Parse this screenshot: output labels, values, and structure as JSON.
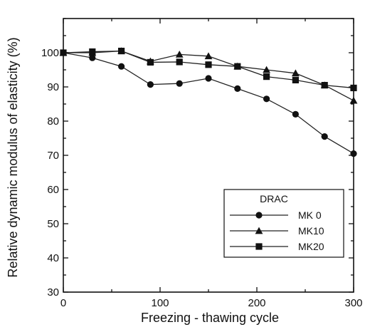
{
  "chart_data": {
    "type": "line",
    "title": "",
    "xlabel": "Freezing - thawing  cycle",
    "ylabel": "Relative  dynamic  modulus  of  elasticity (%)",
    "xlim": [
      0,
      300
    ],
    "ylim": [
      30,
      110
    ],
    "x_ticks": [
      0,
      100,
      200,
      300
    ],
    "y_ticks": [
      30,
      40,
      50,
      60,
      70,
      80,
      90,
      100
    ],
    "grid": false,
    "legend": {
      "title": "DRAC",
      "position": "lower-right"
    },
    "series": [
      {
        "name": "MK 0",
        "marker": "circle",
        "x": [
          0,
          30,
          60,
          90,
          120,
          150,
          180,
          210,
          240,
          270,
          300
        ],
        "values": [
          100,
          98.5,
          96,
          90.7,
          91,
          92.5,
          89.5,
          86.5,
          82,
          75.5,
          70.5
        ]
      },
      {
        "name": "MK10",
        "marker": "triangle",
        "x": [
          0,
          30,
          60,
          90,
          120,
          150,
          180,
          210,
          240,
          270,
          300
        ],
        "values": [
          100,
          100,
          100.5,
          97.5,
          99.5,
          99,
          96,
          95,
          94,
          90.5,
          86
        ]
      },
      {
        "name": "MK20",
        "marker": "square",
        "x": [
          0,
          30,
          60,
          90,
          120,
          150,
          180,
          210,
          240,
          270,
          300
        ],
        "values": [
          100,
          100.3,
          100.5,
          97.2,
          97.3,
          96.5,
          96,
          93,
          92,
          90.5,
          89.7
        ]
      }
    ],
    "colors": {
      "line": "#222222",
      "marker": "#111111",
      "frame": "#111111",
      "background": "#ffffff"
    }
  }
}
